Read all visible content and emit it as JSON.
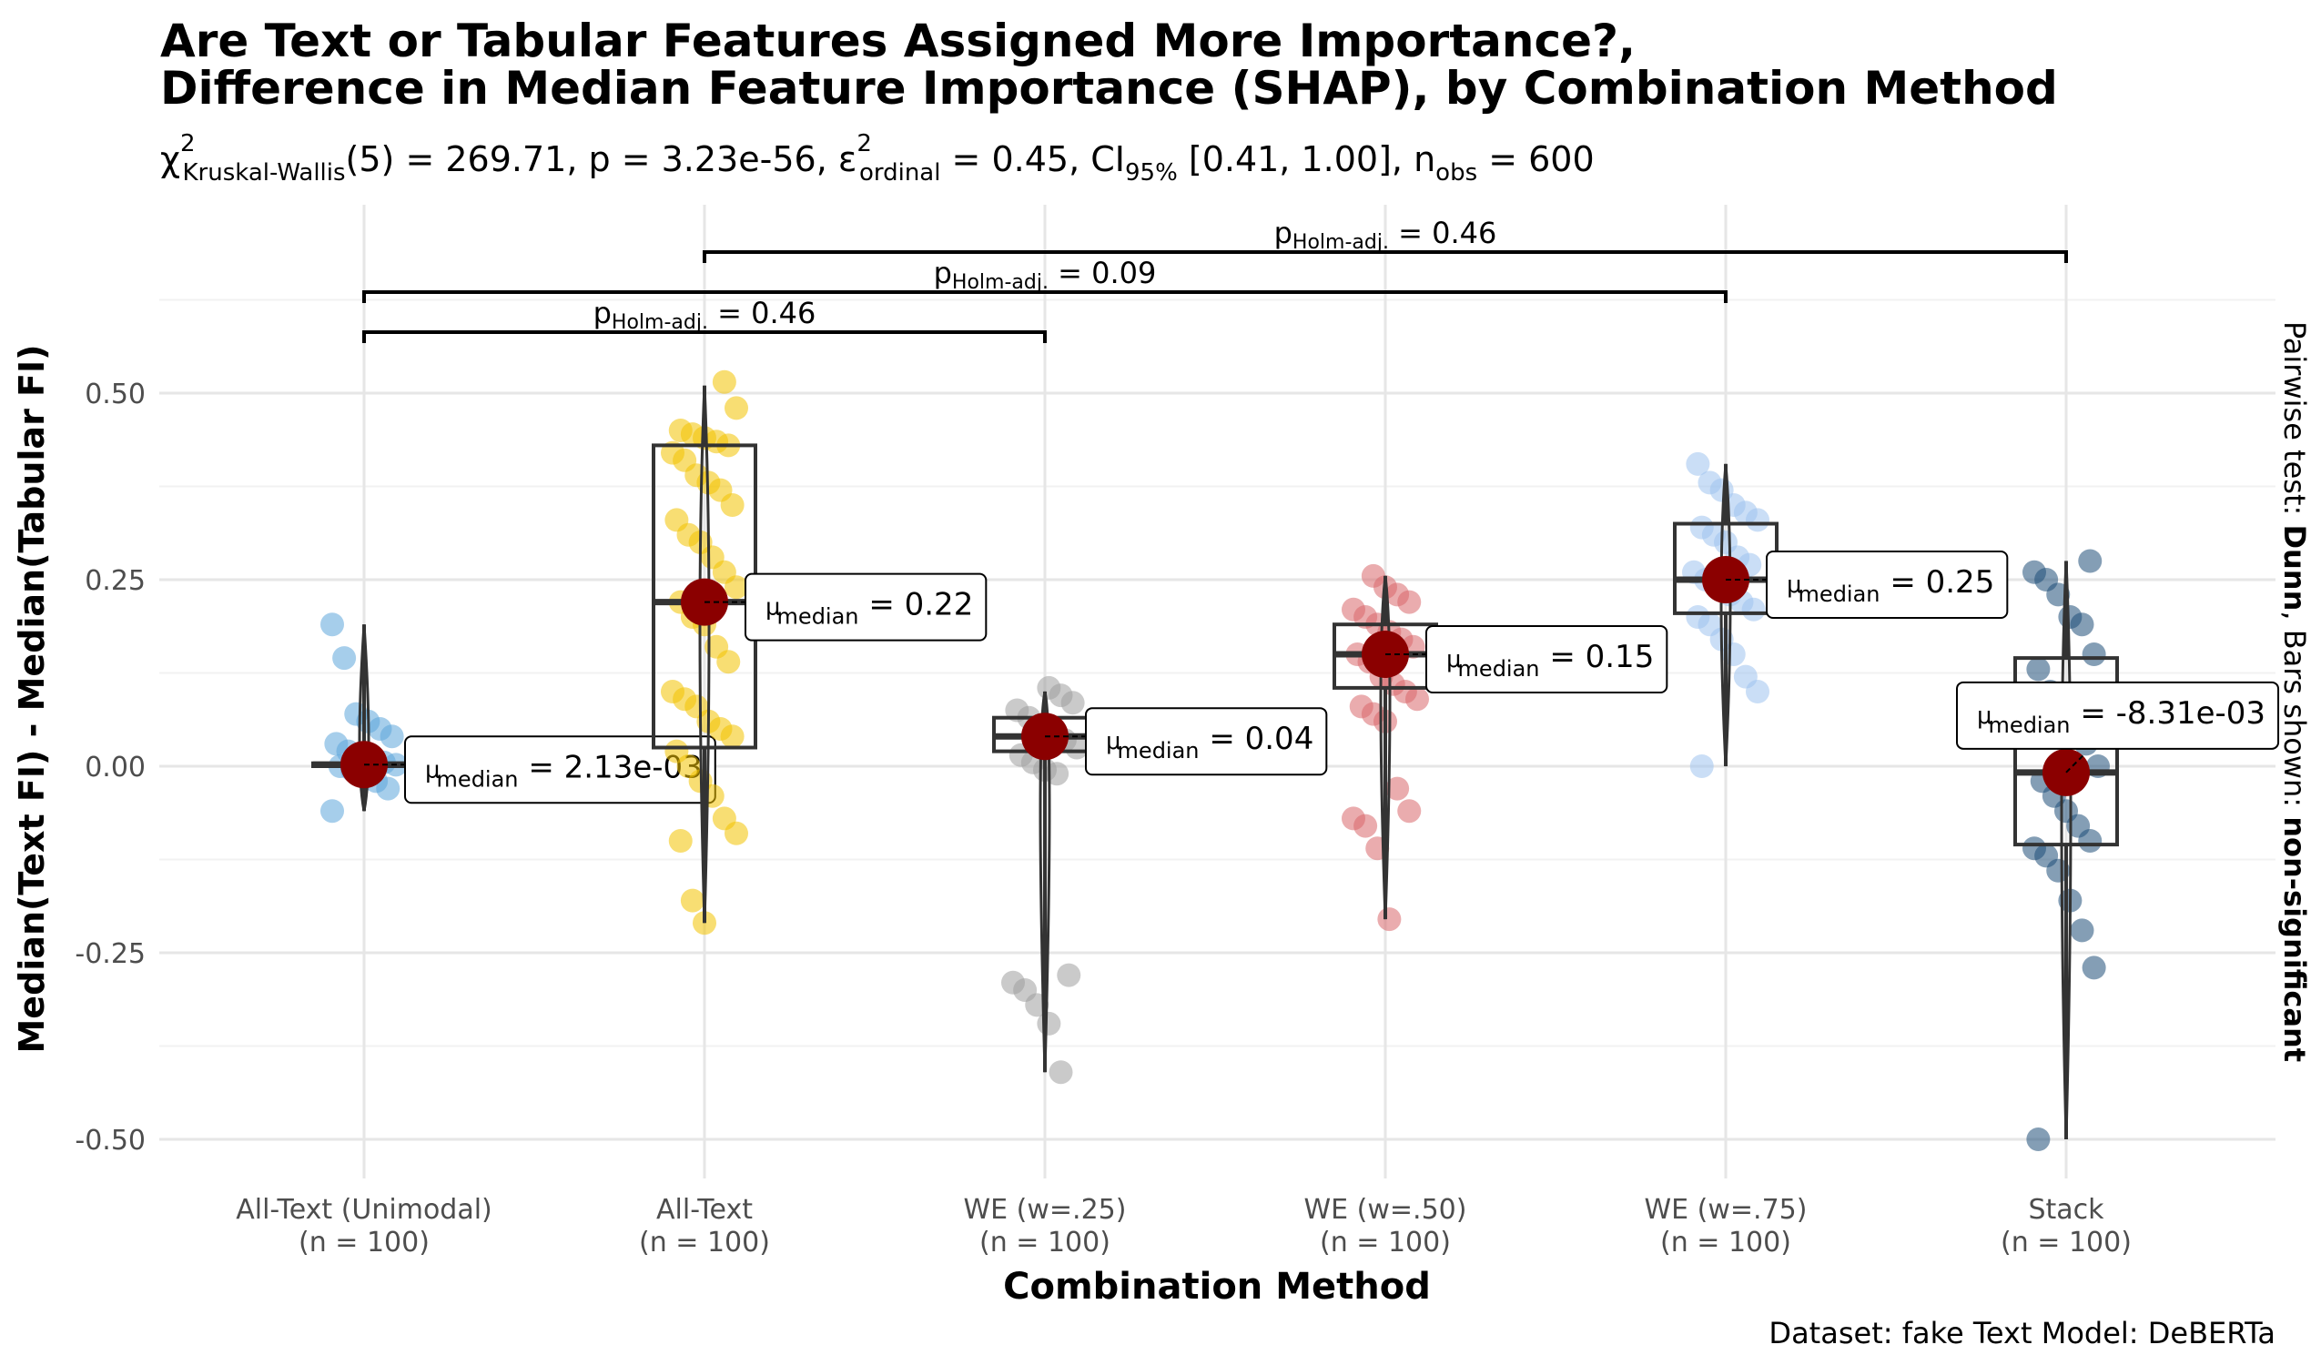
{
  "chart_data": {
    "type": "box-violin-scatter",
    "title_line1": "Are Text or Tabular Features Assigned More Importance?,",
    "title_line2": "Difference in Median Feature Importance (SHAP), by Combination Method",
    "subtitle": {
      "chi_symbol": "χ",
      "chi_sup": "2",
      "test_name": "Kruskal-Wallis",
      "df": "(5)",
      "statistic": "269.71",
      "p_value": "3.23e-56",
      "eps_symbol": "ε",
      "eps_sup": "2",
      "eps_sub": "ordinal",
      "effect_size": "0.45",
      "ci_sub": "95%",
      "ci": "[0.41, 1.00]",
      "n_sub": "obs",
      "n_obs": "600"
    },
    "xlabel": "Combination Method",
    "ylabel": "Median(Text FI) - Median(Tabular FI)",
    "right_label_prefix": "Pairwise test: ",
    "right_label_test": "Dunn",
    "right_label_mid": ", Bars shown: ",
    "right_label_bars": "non-significant",
    "caption": "Dataset:  fake Text Model:  DeBERTa",
    "ylim": [
      -0.56,
      0.66
    ],
    "yticks": [
      0.5,
      0.25,
      0.0,
      -0.25,
      -0.5
    ],
    "ytick_labels": [
      "0.50",
      "0.25",
      "0.00",
      "-0.25",
      "-0.50"
    ],
    "grid": true,
    "median_label_prefix": "μ",
    "median_label_sub": "median",
    "groups": [
      {
        "name": "All-Text (Unimodal)",
        "n_label": "(n = 100)",
        "color": "#5DA5DA",
        "median": 0.00213,
        "median_label": "2.13e-03",
        "q1": 0.0,
        "q3": 0.004,
        "whisker_low": -0.06,
        "whisker_high": 0.19,
        "points": [
          0.19,
          0.145,
          0.07,
          0.06,
          0.05,
          0.04,
          0.03,
          0.02,
          0.015,
          0.01,
          0.005,
          0.002,
          0.0,
          -0.005,
          -0.01,
          -0.02,
          -0.03,
          -0.06
        ]
      },
      {
        "name": "All-Text",
        "n_label": "(n = 100)",
        "color": "#F2C200",
        "median": 0.22,
        "median_label": "0.22",
        "q1": 0.025,
        "q3": 0.43,
        "whisker_low": -0.21,
        "whisker_high": 0.51,
        "points": [
          0.515,
          0.48,
          0.45,
          0.445,
          0.44,
          0.435,
          0.43,
          0.42,
          0.41,
          0.39,
          0.38,
          0.37,
          0.35,
          0.33,
          0.31,
          0.3,
          0.28,
          0.26,
          0.24,
          0.22,
          0.2,
          0.19,
          0.16,
          0.14,
          0.1,
          0.09,
          0.08,
          0.06,
          0.05,
          0.04,
          0.02,
          0.0,
          -0.02,
          -0.04,
          -0.07,
          -0.09,
          -0.1,
          -0.18,
          -0.21
        ]
      },
      {
        "name": "WE (w=.25)",
        "n_label": "(n = 100)",
        "color": "#9E9E9E",
        "median": 0.04,
        "median_label": "0.04",
        "q1": 0.02,
        "q3": 0.065,
        "whisker_low": -0.41,
        "whisker_high": 0.1,
        "points": [
          0.105,
          0.095,
          0.085,
          0.075,
          0.065,
          0.055,
          0.045,
          0.035,
          0.025,
          0.015,
          0.005,
          -0.005,
          -0.01,
          -0.28,
          -0.29,
          -0.3,
          -0.32,
          -0.345,
          -0.41
        ]
      },
      {
        "name": "WE (w=.50)",
        "n_label": "(n = 100)",
        "color": "#D9676B",
        "median": 0.15,
        "median_label": "0.15",
        "q1": 0.105,
        "q3": 0.19,
        "whisker_low": -0.205,
        "whisker_high": 0.255,
        "points": [
          0.255,
          0.24,
          0.23,
          0.22,
          0.21,
          0.2,
          0.19,
          0.18,
          0.17,
          0.16,
          0.15,
          0.14,
          0.12,
          0.11,
          0.1,
          0.09,
          0.08,
          0.07,
          0.06,
          -0.03,
          -0.06,
          -0.07,
          -0.08,
          -0.11,
          -0.205
        ]
      },
      {
        "name": "WE (w=.75)",
        "n_label": "(n = 100)",
        "color": "#9FC2EE",
        "median": 0.25,
        "median_label": "0.25",
        "q1": 0.205,
        "q3": 0.325,
        "whisker_low": 0.0,
        "whisker_high": 0.405,
        "points": [
          0.405,
          0.38,
          0.37,
          0.35,
          0.34,
          0.33,
          0.32,
          0.31,
          0.3,
          0.28,
          0.27,
          0.26,
          0.25,
          0.24,
          0.23,
          0.22,
          0.21,
          0.2,
          0.19,
          0.17,
          0.15,
          0.12,
          0.1,
          0.0
        ]
      },
      {
        "name": "Stack",
        "n_label": "(n = 100)",
        "color": "#1F4E79",
        "median": -0.00831,
        "median_label": "-8.31e-03",
        "q1": -0.105,
        "q3": 0.145,
        "whisker_low": -0.5,
        "whisker_high": 0.275,
        "points": [
          0.275,
          0.26,
          0.25,
          0.23,
          0.2,
          0.19,
          0.15,
          0.13,
          0.1,
          0.08,
          0.05,
          0.03,
          0.0,
          -0.02,
          -0.04,
          -0.06,
          -0.08,
          -0.1,
          -0.11,
          -0.12,
          -0.14,
          -0.18,
          -0.22,
          -0.27,
          -0.5
        ]
      }
    ],
    "pairwise_bars": [
      {
        "from": 2,
        "to": 6,
        "p_symbol": "p",
        "p_sub": "Holm-adj.",
        "p_value": "0.46",
        "level": 0
      },
      {
        "from": 0,
        "to": 5,
        "p_symbol": "p",
        "p_sub": "Holm-adj.",
        "p_value": "0.09",
        "level": 1
      },
      {
        "from": 1,
        "to": 3,
        "p_symbol": "p",
        "p_sub": "Holm-adj.",
        "p_value": "0.46",
        "level": 2
      }
    ]
  }
}
